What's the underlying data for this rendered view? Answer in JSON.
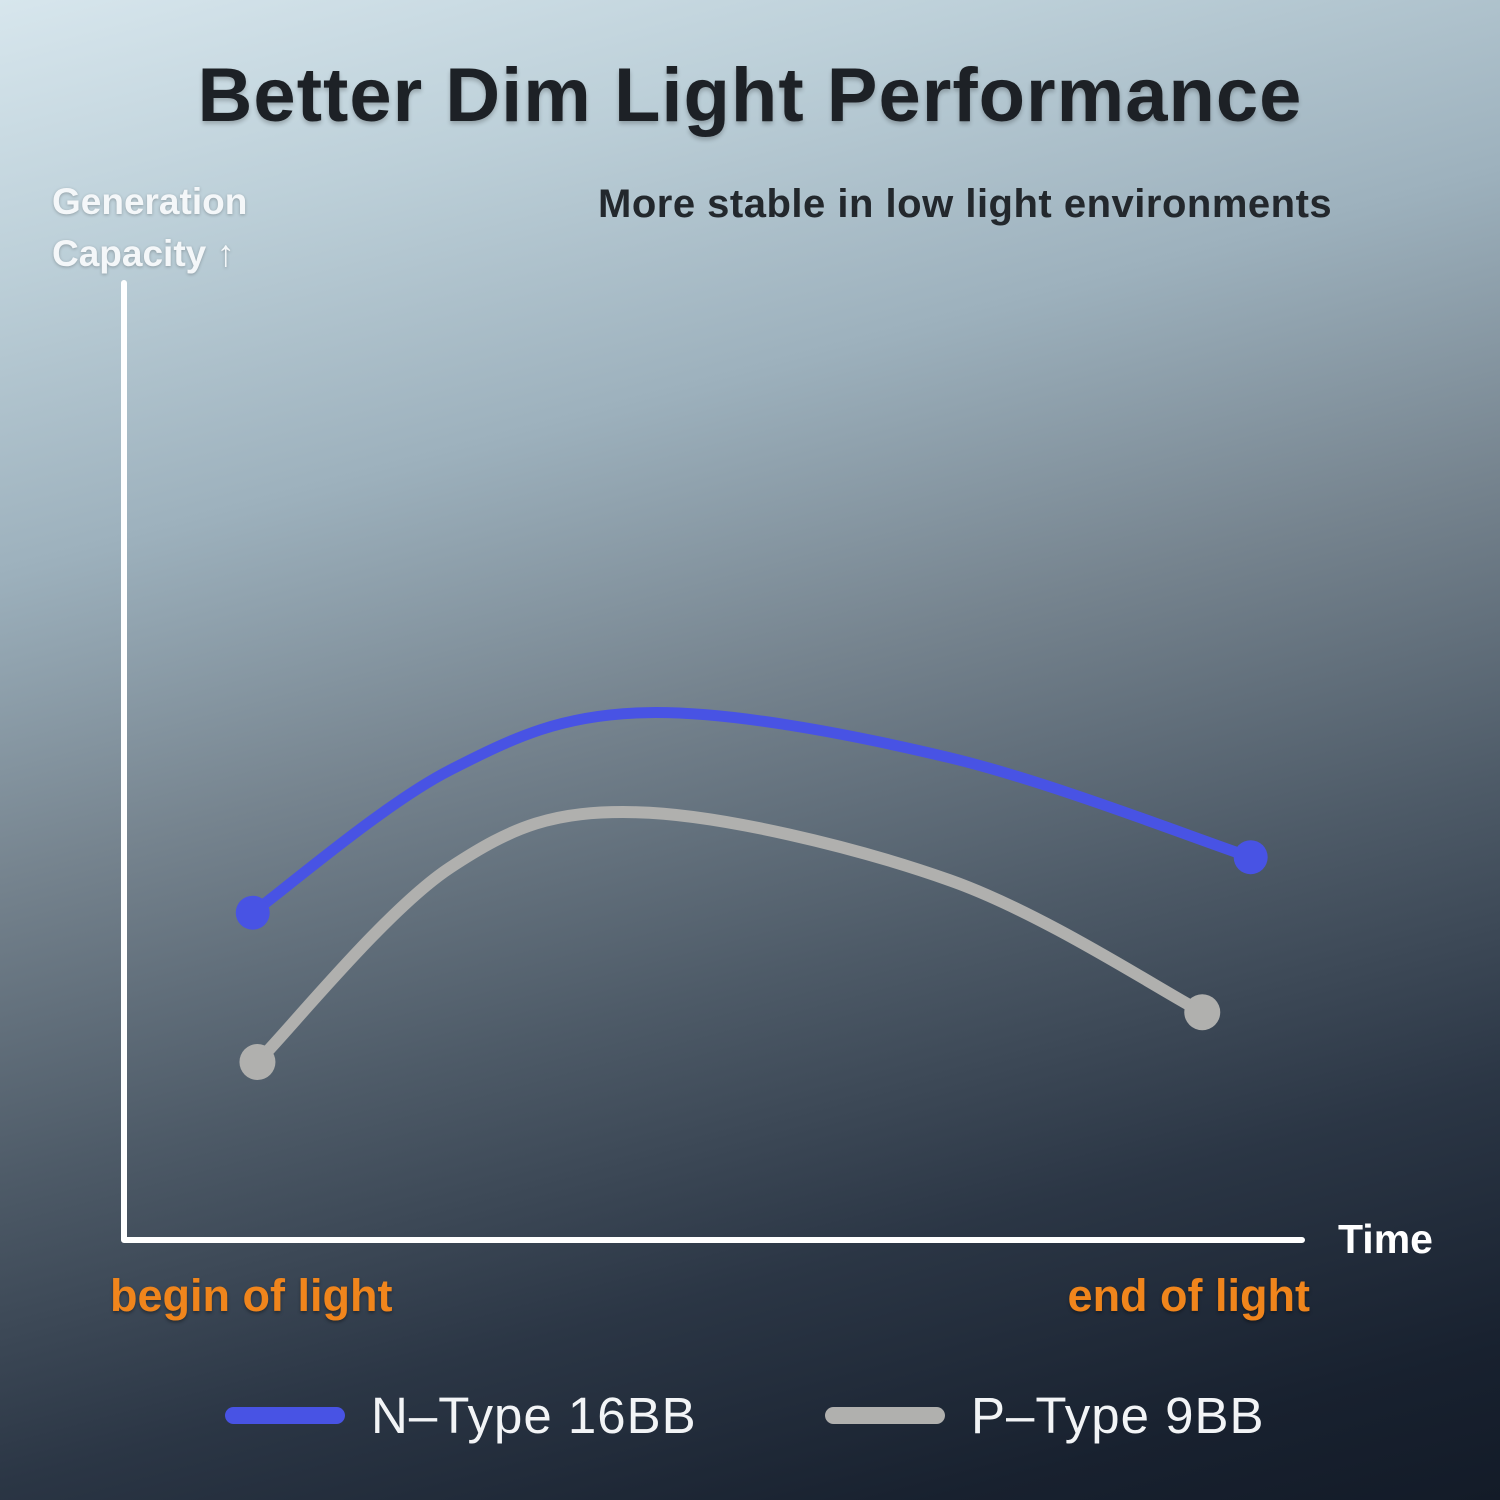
{
  "header": {
    "title": "Better Dim Light Performance",
    "subtitle": "More stable in low light environments"
  },
  "axes": {
    "y_label_line1": "Generation",
    "y_label_line2": "Capacity ↑",
    "x_label": "Time",
    "x_start_label": "begin of light",
    "x_end_label": "end of light"
  },
  "legend": {
    "items": [
      {
        "label": "N–Type 16BB",
        "color": "#4853e4"
      },
      {
        "label": "P–Type 9BB",
        "color": "#b0b0ae"
      }
    ]
  },
  "colors": {
    "title_text": "#1d2126",
    "axis_line": "#ffffff",
    "x_endpoint_labels": "#f0851c",
    "n_type_curve": "#4853e4",
    "p_type_curve": "#b0b0ae"
  },
  "chart_data": {
    "type": "line",
    "title": "Better Dim Light Performance",
    "subtitle": "More stable in low light environments",
    "ylabel": "Generation Capacity",
    "xlabel": "Time",
    "grid": false,
    "legend_position": "bottom",
    "x_axis": {
      "type": "qualitative",
      "start_label": "begin of light",
      "end_label": "end of light",
      "ticks": "none"
    },
    "y_axis": {
      "type": "qualitative",
      "note": "relative generation capacity, 0 = axis baseline, 1 = axis top",
      "ticks": "none"
    },
    "series": [
      {
        "name": "N–Type 16BB",
        "color": "#4853e4",
        "stroke_width": 11,
        "endpoint_markers": true,
        "marker_radius": 17,
        "points_normalized": [
          [
            0.109,
            0.342
          ],
          [
            0.276,
            0.491
          ],
          [
            0.441,
            0.551
          ],
          [
            0.699,
            0.504
          ],
          [
            0.954,
            0.4
          ]
        ]
      },
      {
        "name": "P–Type 9BB",
        "color": "#b0b0ae",
        "stroke_width": 12,
        "endpoint_markers": true,
        "marker_radius": 18,
        "points_normalized": [
          [
            0.113,
            0.186
          ],
          [
            0.276,
            0.389
          ],
          [
            0.434,
            0.447
          ],
          [
            0.699,
            0.376
          ],
          [
            0.913,
            0.238
          ]
        ]
      }
    ]
  }
}
